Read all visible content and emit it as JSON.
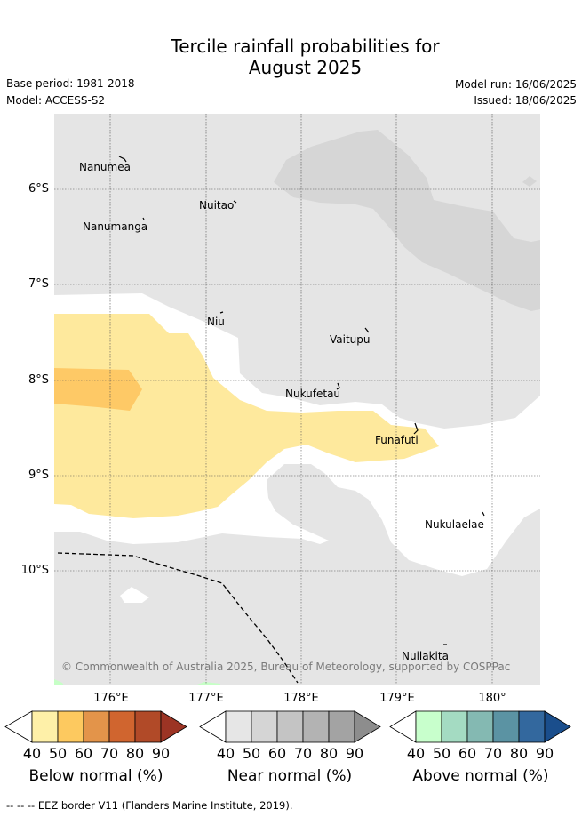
{
  "title": {
    "line1": "Tercile rainfall probabilities for",
    "line2": "August 2025"
  },
  "meta": {
    "base_period": "Base period: 1981-2018",
    "model": "Model: ACCESS-S2",
    "model_run": "Model run: 16/06/2025",
    "issued": "Issued: 18/06/2025"
  },
  "map": {
    "latitude_labels": [
      "6°S",
      "7°S",
      "8°S",
      "9°S",
      "10°S"
    ],
    "longitude_labels": [
      "176°E",
      "177°E",
      "178°E",
      "179°E",
      "180°"
    ],
    "islands": [
      "Nanumea",
      "Nuitao",
      "Nanumanga",
      "Niu",
      "Vaitupu",
      "Nukufetau",
      "Funafuti",
      "Nukulaelae",
      "Nuilakita"
    ],
    "copyright": "© Commonwealth of Australia 2025, Bureau of Meteorology, supported by COSPPac",
    "colors": {
      "near_normal_40": "#e5e5e5",
      "near_normal_50": "#d6d6d6",
      "below_normal_40": "#fee99d",
      "below_normal_50": "#fec966",
      "above_normal_40": "#c6ffc6"
    }
  },
  "colorbars": [
    {
      "label": "Below normal (%)",
      "ticks": [
        "40",
        "50",
        "60",
        "70",
        "80",
        "90"
      ],
      "colors": [
        "#fef0a8",
        "#fdc95f",
        "#e3944a",
        "#d0652f",
        "#b14a28",
        "#9c3424"
      ]
    },
    {
      "label": "Near normal (%)",
      "ticks": [
        "40",
        "50",
        "60",
        "70",
        "80",
        "90"
      ],
      "colors": [
        "#e6e6e6",
        "#d5d5d5",
        "#c4c4c4",
        "#b3b3b3",
        "#a3a3a3",
        "#8d8d8d"
      ]
    },
    {
      "label": "Above normal (%)",
      "ticks": [
        "40",
        "50",
        "60",
        "70",
        "80",
        "90"
      ],
      "colors": [
        "#c8ffcc",
        "#a4dbc2",
        "#84b9b2",
        "#5b93a3",
        "#33689e",
        "#1a4e8c"
      ]
    }
  ],
  "footer": "-- -- -- EEZ border V11 (Flanders Marine Institute, 2019)."
}
